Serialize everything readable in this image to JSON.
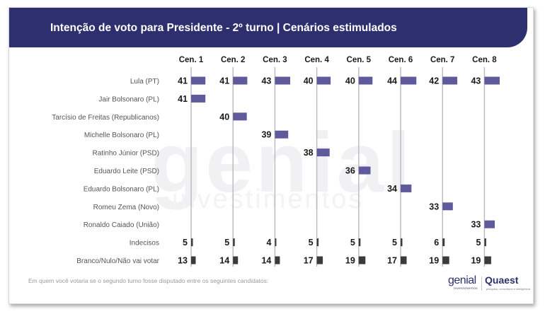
{
  "watermark": {
    "logo": "genial",
    "sub": "investimentos"
  },
  "footnote": "Em quem você votaria se o segundo turno fosse disputado entre os seguintes candidatos:",
  "logos": {
    "genial": "genial",
    "genial_sub": "investimentos",
    "quaest": "Quaest",
    "quaest_sub": "pesquisa, consultoria e inteligência"
  },
  "colors": {
    "header_bg": "#2d2f6e",
    "bar_candidate": "#5f5a9b",
    "bar_other": "#3b3b3b",
    "gridline": "#b9b9be",
    "label_text": "#555555",
    "value_text": "#1a1a1a"
  },
  "chart_data": {
    "type": "bar",
    "title": "Intenção de voto para Presidente - 2º turno | Cenários estimulados",
    "scenarios": [
      "Cen. 1",
      "Cen. 2",
      "Cen. 3",
      "Cen. 4",
      "Cen. 5",
      "Cen. 6",
      "Cen. 7",
      "Cen. 8"
    ],
    "rows": [
      {
        "label": "Lula (PT)",
        "kind": "candidate",
        "values": [
          41,
          41,
          43,
          40,
          40,
          44,
          42,
          43
        ]
      },
      {
        "label": "Jair Bolsonaro (PL)",
        "kind": "candidate",
        "values": [
          41,
          null,
          null,
          null,
          null,
          null,
          null,
          null
        ]
      },
      {
        "label": "Tarcísio de Freitas (Republicanos)",
        "kind": "candidate",
        "values": [
          null,
          40,
          null,
          null,
          null,
          null,
          null,
          null
        ]
      },
      {
        "label": "Michelle Bolsonaro (PL)",
        "kind": "candidate",
        "values": [
          null,
          null,
          39,
          null,
          null,
          null,
          null,
          null
        ]
      },
      {
        "label": "Ratinho Júnior (PSD)",
        "kind": "candidate",
        "values": [
          null,
          null,
          null,
          38,
          null,
          null,
          null,
          null
        ]
      },
      {
        "label": "Eduardo Leite (PSD)",
        "kind": "candidate",
        "values": [
          null,
          null,
          null,
          null,
          36,
          null,
          null,
          null
        ]
      },
      {
        "label": "Eduardo Bolsonaro (PL)",
        "kind": "candidate",
        "values": [
          null,
          null,
          null,
          null,
          null,
          34,
          null,
          null
        ]
      },
      {
        "label": "Romeu Zema (Novo)",
        "kind": "candidate",
        "values": [
          null,
          null,
          null,
          null,
          null,
          null,
          33,
          null
        ]
      },
      {
        "label": "Ronaldo Caiado (União)",
        "kind": "candidate",
        "values": [
          null,
          null,
          null,
          null,
          null,
          null,
          null,
          33
        ]
      },
      {
        "label": "Indecisos",
        "kind": "other",
        "values": [
          5,
          5,
          4,
          5,
          5,
          5,
          6,
          5
        ]
      },
      {
        "label": "Branco/Nulo/Não vai votar",
        "kind": "other",
        "values": [
          13,
          14,
          14,
          17,
          19,
          17,
          19,
          19
        ]
      }
    ],
    "grid": true
  }
}
